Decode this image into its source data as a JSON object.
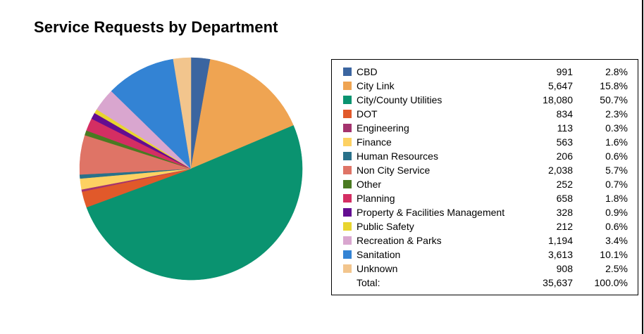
{
  "chart_data": {
    "type": "pie",
    "title": "Service Requests by Department",
    "categories": [
      "CBD",
      "City Link",
      "City/County Utilities",
      "DOT",
      "Engineering",
      "Finance",
      "Human Resources",
      "Non City Service",
      "Other",
      "Planning",
      "Property & Facilities Management",
      "Public Safety",
      "Recreation & Parks",
      "Sanitation",
      "Unknown"
    ],
    "values": [
      991,
      5647,
      18080,
      834,
      113,
      563,
      206,
      2038,
      252,
      658,
      328,
      212,
      1194,
      3613,
      908
    ],
    "count_labels": [
      "991",
      "5,647",
      "18,080",
      "834",
      "113",
      "563",
      "206",
      "2,038",
      "252",
      "658",
      "328",
      "212",
      "1,194",
      "3,613",
      "908"
    ],
    "percent_labels": [
      "2.8%",
      "15.8%",
      "50.7%",
      "2.3%",
      "0.3%",
      "1.6%",
      "0.6%",
      "5.7%",
      "0.7%",
      "1.8%",
      "0.9%",
      "0.6%",
      "3.4%",
      "10.1%",
      "2.5%"
    ],
    "colors": [
      "#3b65a0",
      "#efa452",
      "#0a9370",
      "#e1592a",
      "#a4336e",
      "#fdd162",
      "#29718a",
      "#df7466",
      "#4a7a21",
      "#d42e63",
      "#630d91",
      "#e8d52f",
      "#d9a6cf",
      "#3383d4",
      "#f2c58d"
    ],
    "total_label": "Total:",
    "total_count": "35,637",
    "total_percent": "100.0%",
    "legend_position": "right"
  }
}
